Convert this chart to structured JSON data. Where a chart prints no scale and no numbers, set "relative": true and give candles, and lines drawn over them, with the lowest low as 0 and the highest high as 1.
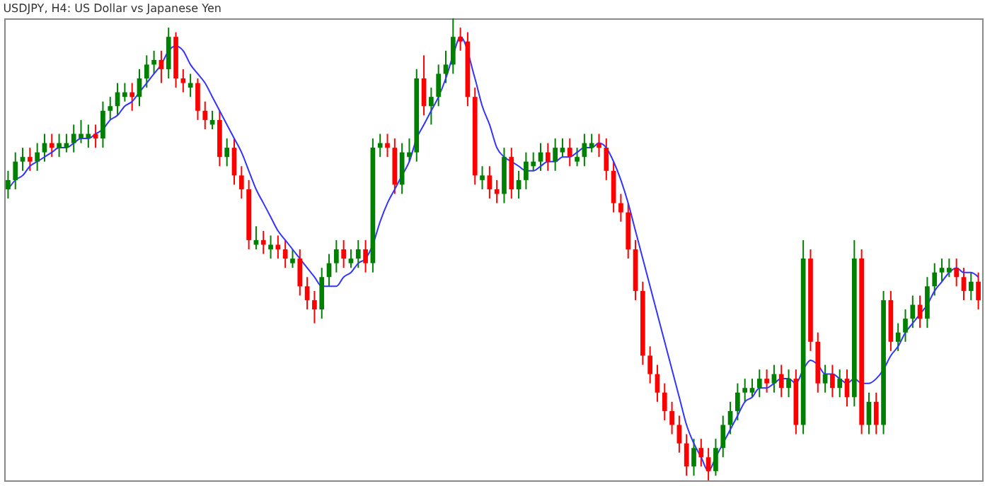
{
  "chart_data": {
    "type": "candlestick",
    "title": "USDJPY, H4: US Dollar vs Japanese Yen",
    "relative": true,
    "categories": [
      null,
      null,
      null,
      null,
      null,
      null,
      null,
      null,
      null,
      null,
      null,
      null,
      null,
      null,
      null,
      null,
      null,
      null,
      null,
      null,
      null,
      null,
      null,
      null,
      null,
      null,
      null,
      null,
      null,
      null,
      null,
      null,
      null,
      null,
      null,
      null,
      null,
      null,
      null,
      null,
      null,
      null,
      null,
      null,
      null,
      null,
      null,
      null,
      null,
      null,
      null,
      null,
      null,
      null,
      null,
      null,
      null,
      null,
      null,
      null,
      null,
      null,
      null,
      null,
      null,
      null,
      null,
      null,
      null,
      null,
      null,
      null,
      null,
      null,
      null,
      null,
      null,
      null,
      null,
      null,
      null,
      null,
      null,
      null,
      null,
      null,
      null,
      null,
      null,
      null,
      null,
      null,
      null,
      null,
      null,
      null,
      null,
      null,
      null,
      null,
      null,
      null,
      null,
      null,
      null,
      null,
      null,
      null,
      null,
      null,
      null,
      null,
      null,
      null,
      null,
      null,
      null,
      null,
      null,
      null,
      null,
      null,
      null,
      null,
      null,
      null,
      null,
      null,
      null,
      null,
      null,
      null,
      null,
      null
    ],
    "ohlc": [
      [
        0.63,
        0.67,
        0.61,
        0.65
      ],
      [
        0.65,
        0.71,
        0.63,
        0.69
      ],
      [
        0.69,
        0.72,
        0.67,
        0.7
      ],
      [
        0.7,
        0.72,
        0.67,
        0.69
      ],
      [
        0.69,
        0.73,
        0.67,
        0.71
      ],
      [
        0.71,
        0.75,
        0.69,
        0.73
      ],
      [
        0.73,
        0.75,
        0.7,
        0.72
      ],
      [
        0.72,
        0.75,
        0.7,
        0.73
      ],
      [
        0.72,
        0.75,
        0.71,
        0.73
      ],
      [
        0.73,
        0.77,
        0.71,
        0.75
      ],
      [
        0.74,
        0.78,
        0.73,
        0.75
      ],
      [
        0.74,
        0.77,
        0.72,
        0.75
      ],
      [
        0.75,
        0.77,
        0.72,
        0.74
      ],
      [
        0.74,
        0.82,
        0.72,
        0.8
      ],
      [
        0.8,
        0.83,
        0.78,
        0.81
      ],
      [
        0.81,
        0.86,
        0.79,
        0.84
      ],
      [
        0.83,
        0.86,
        0.82,
        0.84
      ],
      [
        0.84,
        0.86,
        0.8,
        0.83
      ],
      [
        0.83,
        0.89,
        0.81,
        0.87
      ],
      [
        0.87,
        0.92,
        0.85,
        0.9
      ],
      [
        0.9,
        0.93,
        0.88,
        0.91
      ],
      [
        0.91,
        0.93,
        0.86,
        0.89
      ],
      [
        0.89,
        0.98,
        0.87,
        0.96
      ],
      [
        0.96,
        0.97,
        0.85,
        0.87
      ],
      [
        0.87,
        0.89,
        0.84,
        0.86
      ],
      [
        0.85,
        0.88,
        0.83,
        0.86
      ],
      [
        0.86,
        0.87,
        0.78,
        0.8
      ],
      [
        0.8,
        0.82,
        0.76,
        0.78
      ],
      [
        0.77,
        0.8,
        0.76,
        0.78
      ],
      [
        0.78,
        0.8,
        0.68,
        0.7
      ],
      [
        0.7,
        0.74,
        0.68,
        0.72
      ],
      [
        0.72,
        0.74,
        0.64,
        0.66
      ],
      [
        0.66,
        0.68,
        0.61,
        0.63
      ],
      [
        0.63,
        0.65,
        0.5,
        0.52
      ],
      [
        0.51,
        0.55,
        0.5,
        0.52
      ],
      [
        0.52,
        0.54,
        0.49,
        0.51
      ],
      [
        0.5,
        0.53,
        0.48,
        0.51
      ],
      [
        0.51,
        0.53,
        0.48,
        0.5
      ],
      [
        0.5,
        0.52,
        0.46,
        0.48
      ],
      [
        0.47,
        0.5,
        0.46,
        0.48
      ],
      [
        0.48,
        0.5,
        0.4,
        0.42
      ],
      [
        0.42,
        0.44,
        0.37,
        0.39
      ],
      [
        0.39,
        0.41,
        0.34,
        0.37
      ],
      [
        0.37,
        0.46,
        0.35,
        0.44
      ],
      [
        0.44,
        0.49,
        0.42,
        0.47
      ],
      [
        0.47,
        0.52,
        0.45,
        0.5
      ],
      [
        0.5,
        0.52,
        0.46,
        0.48
      ],
      [
        0.47,
        0.5,
        0.46,
        0.48
      ],
      [
        0.48,
        0.52,
        0.46,
        0.5
      ],
      [
        0.5,
        0.52,
        0.45,
        0.47
      ],
      [
        0.47,
        0.74,
        0.45,
        0.72
      ],
      [
        0.72,
        0.75,
        0.7,
        0.73
      ],
      [
        0.73,
        0.75,
        0.7,
        0.72
      ],
      [
        0.72,
        0.74,
        0.62,
        0.64
      ],
      [
        0.64,
        0.73,
        0.62,
        0.71
      ],
      [
        0.7,
        0.74,
        0.69,
        0.71
      ],
      [
        0.71,
        0.89,
        0.69,
        0.87
      ],
      [
        0.87,
        0.92,
        0.79,
        0.81
      ],
      [
        0.81,
        0.85,
        0.77,
        0.83
      ],
      [
        0.83,
        0.9,
        0.81,
        0.88
      ],
      [
        0.88,
        0.93,
        0.86,
        0.9
      ],
      [
        0.9,
        1,
        0.88,
        0.96
      ],
      [
        0.96,
        0.98,
        0.93,
        0.95
      ],
      [
        0.95,
        0.97,
        0.81,
        0.83
      ],
      [
        0.83,
        0.85,
        0.64,
        0.66
      ],
      [
        0.65,
        0.68,
        0.63,
        0.66
      ],
      [
        0.66,
        0.68,
        0.61,
        0.63
      ],
      [
        0.63,
        0.65,
        0.6,
        0.62
      ],
      [
        0.62,
        0.72,
        0.6,
        0.7
      ],
      [
        0.7,
        0.72,
        0.61,
        0.63
      ],
      [
        0.63,
        0.67,
        0.61,
        0.65
      ],
      [
        0.65,
        0.71,
        0.63,
        0.69
      ],
      [
        0.68,
        0.71,
        0.67,
        0.69
      ],
      [
        0.69,
        0.73,
        0.67,
        0.71
      ],
      [
        0.71,
        0.73,
        0.67,
        0.69
      ],
      [
        0.69,
        0.74,
        0.67,
        0.72
      ],
      [
        0.71,
        0.74,
        0.7,
        0.72
      ],
      [
        0.72,
        0.74,
        0.68,
        0.7
      ],
      [
        0.69,
        0.72,
        0.68,
        0.7
      ],
      [
        0.7,
        0.75,
        0.68,
        0.73
      ],
      [
        0.72,
        0.75,
        0.71,
        0.73
      ],
      [
        0.73,
        0.75,
        0.7,
        0.72
      ],
      [
        0.72,
        0.74,
        0.65,
        0.67
      ],
      [
        0.67,
        0.69,
        0.58,
        0.6
      ],
      [
        0.6,
        0.62,
        0.56,
        0.58
      ],
      [
        0.58,
        0.6,
        0.48,
        0.5
      ],
      [
        0.5,
        0.52,
        0.39,
        0.41
      ],
      [
        0.41,
        0.43,
        0.25,
        0.27
      ],
      [
        0.27,
        0.29,
        0.21,
        0.23
      ],
      [
        0.23,
        0.25,
        0.17,
        0.19
      ],
      [
        0.19,
        0.21,
        0.13,
        0.15
      ],
      [
        0.15,
        0.17,
        0.1,
        0.12
      ],
      [
        0.12,
        0.14,
        0.06,
        0.08
      ],
      [
        0.08,
        0.1,
        0.01,
        0.03
      ],
      [
        0.03,
        0.09,
        0.01,
        0.07
      ],
      [
        0.07,
        0.09,
        0.03,
        0.05
      ],
      [
        0.05,
        0.07,
        0,
        0.02
      ],
      [
        0.02,
        0.09,
        0.01,
        0.07
      ],
      [
        0.07,
        0.14,
        0.05,
        0.12
      ],
      [
        0.12,
        0.17,
        0.1,
        0.15
      ],
      [
        0.15,
        0.21,
        0.13,
        0.19
      ],
      [
        0.19,
        0.22,
        0.17,
        0.2
      ],
      [
        0.19,
        0.22,
        0.18,
        0.2
      ],
      [
        0.2,
        0.24,
        0.18,
        0.22
      ],
      [
        0.22,
        0.24,
        0.19,
        0.21
      ],
      [
        0.21,
        0.25,
        0.19,
        0.23
      ],
      [
        0.23,
        0.25,
        0.18,
        0.2
      ],
      [
        0.2,
        0.24,
        0.18,
        0.22
      ],
      [
        0.22,
        0.24,
        0.1,
        0.12
      ],
      [
        0.12,
        0.52,
        0.1,
        0.48
      ],
      [
        0.48,
        0.5,
        0.28,
        0.3
      ],
      [
        0.3,
        0.32,
        0.19,
        0.21
      ],
      [
        0.21,
        0.25,
        0.19,
        0.23
      ],
      [
        0.23,
        0.25,
        0.18,
        0.2
      ],
      [
        0.2,
        0.24,
        0.18,
        0.22
      ],
      [
        0.22,
        0.24,
        0.16,
        0.18
      ],
      [
        0.18,
        0.52,
        0.16,
        0.48
      ],
      [
        0.48,
        0.5,
        0.1,
        0.12
      ],
      [
        0.12,
        0.19,
        0.1,
        0.17
      ],
      [
        0.17,
        0.19,
        0.1,
        0.12
      ],
      [
        0.12,
        0.41,
        0.1,
        0.39
      ],
      [
        0.39,
        0.41,
        0.28,
        0.3
      ],
      [
        0.3,
        0.34,
        0.28,
        0.32
      ],
      [
        0.32,
        0.37,
        0.3,
        0.35
      ],
      [
        0.35,
        0.4,
        0.33,
        0.38
      ],
      [
        0.38,
        0.4,
        0.33,
        0.35
      ],
      [
        0.35,
        0.44,
        0.33,
        0.42
      ],
      [
        0.42,
        0.47,
        0.4,
        0.45
      ],
      [
        0.45,
        0.48,
        0.43,
        0.46
      ],
      [
        0.45,
        0.48,
        0.44,
        0.46
      ],
      [
        0.46,
        0.48,
        0.42,
        0.44
      ],
      [
        0.44,
        0.46,
        0.39,
        0.41
      ],
      [
        0.41,
        0.45,
        0.39,
        0.43
      ],
      [
        0.43,
        0.45,
        0.37,
        0.39
      ]
    ],
    "colors": [
      "#008000",
      "#008000",
      "#008000",
      "#ff0000",
      "#008000",
      "#008000",
      "#ff0000",
      "#008000",
      "#008000",
      "#008000",
      "#008000",
      "#008000",
      "#ff0000",
      "#008000",
      "#008000",
      "#008000",
      "#008000",
      "#ff0000",
      "#008000",
      "#008000",
      "#008000",
      "#ff0000",
      "#008000",
      "#ff0000",
      "#ff0000",
      "#008000",
      "#ff0000",
      "#ff0000",
      "#008000",
      "#ff0000",
      "#008000",
      "#ff0000",
      "#ff0000",
      "#ff0000",
      "#008000",
      "#ff0000",
      "#008000",
      "#ff0000",
      "#ff0000",
      "#008000",
      "#ff0000",
      "#ff0000",
      "#ff0000",
      "#008000",
      "#008000",
      "#008000",
      "#ff0000",
      "#008000",
      "#008000",
      "#ff0000",
      "#008000",
      "#008000",
      "#ff0000",
      "#ff0000",
      "#008000",
      "#008000",
      "#008000",
      "#ff0000",
      "#008000",
      "#008000",
      "#008000",
      "#008000",
      "#ff0000",
      "#ff0000",
      "#ff0000",
      "#008000",
      "#ff0000",
      "#ff0000",
      "#008000",
      "#ff0000",
      "#008000",
      "#008000",
      "#008000",
      "#008000",
      "#ff0000",
      "#008000",
      "#008000",
      "#ff0000",
      "#008000",
      "#008000",
      "#008000",
      "#ff0000",
      "#ff0000",
      "#ff0000",
      "#ff0000",
      "#ff0000",
      "#ff0000",
      "#ff0000",
      "#ff0000",
      "#ff0000",
      "#ff0000",
      "#ff0000",
      "#ff0000",
      "#ff0000",
      "#008000",
      "#ff0000",
      "#ff0000",
      "#008000",
      "#008000",
      "#008000",
      "#008000",
      "#008000",
      "#008000",
      "#008000",
      "#ff0000",
      "#008000",
      "#ff0000",
      "#008000",
      "#ff0000",
      "#008000",
      "#ff0000",
      "#ff0000",
      "#008000",
      "#ff0000",
      "#008000",
      "#ff0000",
      "#008000",
      "#ff0000",
      "#008000",
      "#ff0000",
      "#008000",
      "#ff0000",
      "#008000",
      "#008000",
      "#008000",
      "#ff0000",
      "#008000",
      "#008000",
      "#008000",
      "#008000",
      "#ff0000",
      "#ff0000",
      "#008000",
      "#ff0000"
    ],
    "series": [
      {
        "type": "line",
        "color": "#3333ff",
        "values": [
          0.63,
          0.65,
          0.66,
          0.68,
          0.69,
          0.7,
          0.71,
          0.72,
          0.72,
          0.73,
          0.74,
          0.74,
          0.75,
          0.76,
          0.78,
          0.79,
          0.81,
          0.82,
          0.84,
          0.86,
          0.88,
          0.9,
          0.93,
          0.94,
          0.93,
          0.9,
          0.88,
          0.86,
          0.83,
          0.8,
          0.77,
          0.74,
          0.71,
          0.67,
          0.63,
          0.6,
          0.57,
          0.54,
          0.52,
          0.5,
          0.48,
          0.46,
          0.44,
          0.42,
          0.42,
          0.42,
          0.44,
          0.45,
          0.47,
          0.48,
          0.51,
          0.56,
          0.6,
          0.63,
          0.66,
          0.69,
          0.74,
          0.77,
          0.8,
          0.83,
          0.87,
          0.92,
          0.96,
          null,
          0.87,
          0.81,
          0.77,
          0.72,
          0.7,
          0.69,
          0.68,
          0.67,
          0.67,
          0.68,
          0.69,
          0.69,
          0.7,
          0.7,
          0.71,
          0.72,
          0.72,
          0.73,
          0.72,
          0.69,
          0.65,
          0.6,
          0.54,
          0.48,
          0.42,
          0.36,
          0.3,
          0.24,
          0.18,
          0.12,
          0.08,
          0.05,
          0.02,
          0.05,
          0.08,
          0.11,
          0.14,
          0.17,
          0.18,
          0.2,
          0.2,
          0.21,
          0.22,
          0.22,
          0.21,
          0.24,
          0.26,
          0.25,
          0.23,
          0.23,
          0.22,
          0.21,
          0.22,
          0.21,
          0.21,
          0.22,
          0.24,
          0.27,
          0.29,
          0.32,
          0.34,
          0.36,
          0.38,
          0.41,
          0.43,
          0.45,
          0.46,
          0.45,
          0.45,
          0.44
        ]
      }
    ]
  }
}
